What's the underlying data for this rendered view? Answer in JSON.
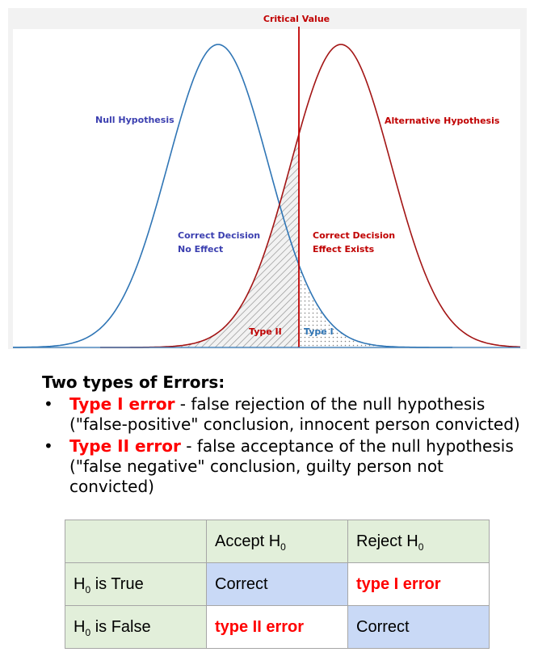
{
  "figure": {
    "critical_label": "Critical Value",
    "null_label": "Null Hypothesis",
    "alt_label": "Alternative Hypothesis",
    "correct_no_effect": [
      "Correct Decision",
      "No Effect"
    ],
    "correct_effect": [
      "Correct Decision",
      "Effect Exists"
    ],
    "type2_label": "Type II",
    "type1_label": "Type I",
    "colors": {
      "null": "#2f75b5",
      "alt": "#a31515",
      "critical": "#c00000",
      "null_text": "#3b3fb0",
      "alt_text": "#c00000"
    }
  },
  "errors": {
    "heading": "Two types of Errors:",
    "items": [
      {
        "name": "Type I error",
        "text": " - false rejection of the null hypothesis (\"false-positive\" conclusion, innocent person convicted)"
      },
      {
        "name": "Type II error",
        "text": " - false acceptance of the null hypothesis (\"false negative\" conclusion, guilty person not convicted)"
      }
    ],
    "bullet": "•"
  },
  "table": {
    "header": [
      "",
      "Accept H",
      "Reject H"
    ],
    "sub": "0",
    "rows": [
      {
        "label": "H",
        "label_rest": " is True",
        "cells": [
          "Correct",
          "type I error"
        ]
      },
      {
        "label": "H",
        "label_rest": " is False",
        "cells": [
          "type II error",
          "Correct"
        ]
      }
    ]
  }
}
